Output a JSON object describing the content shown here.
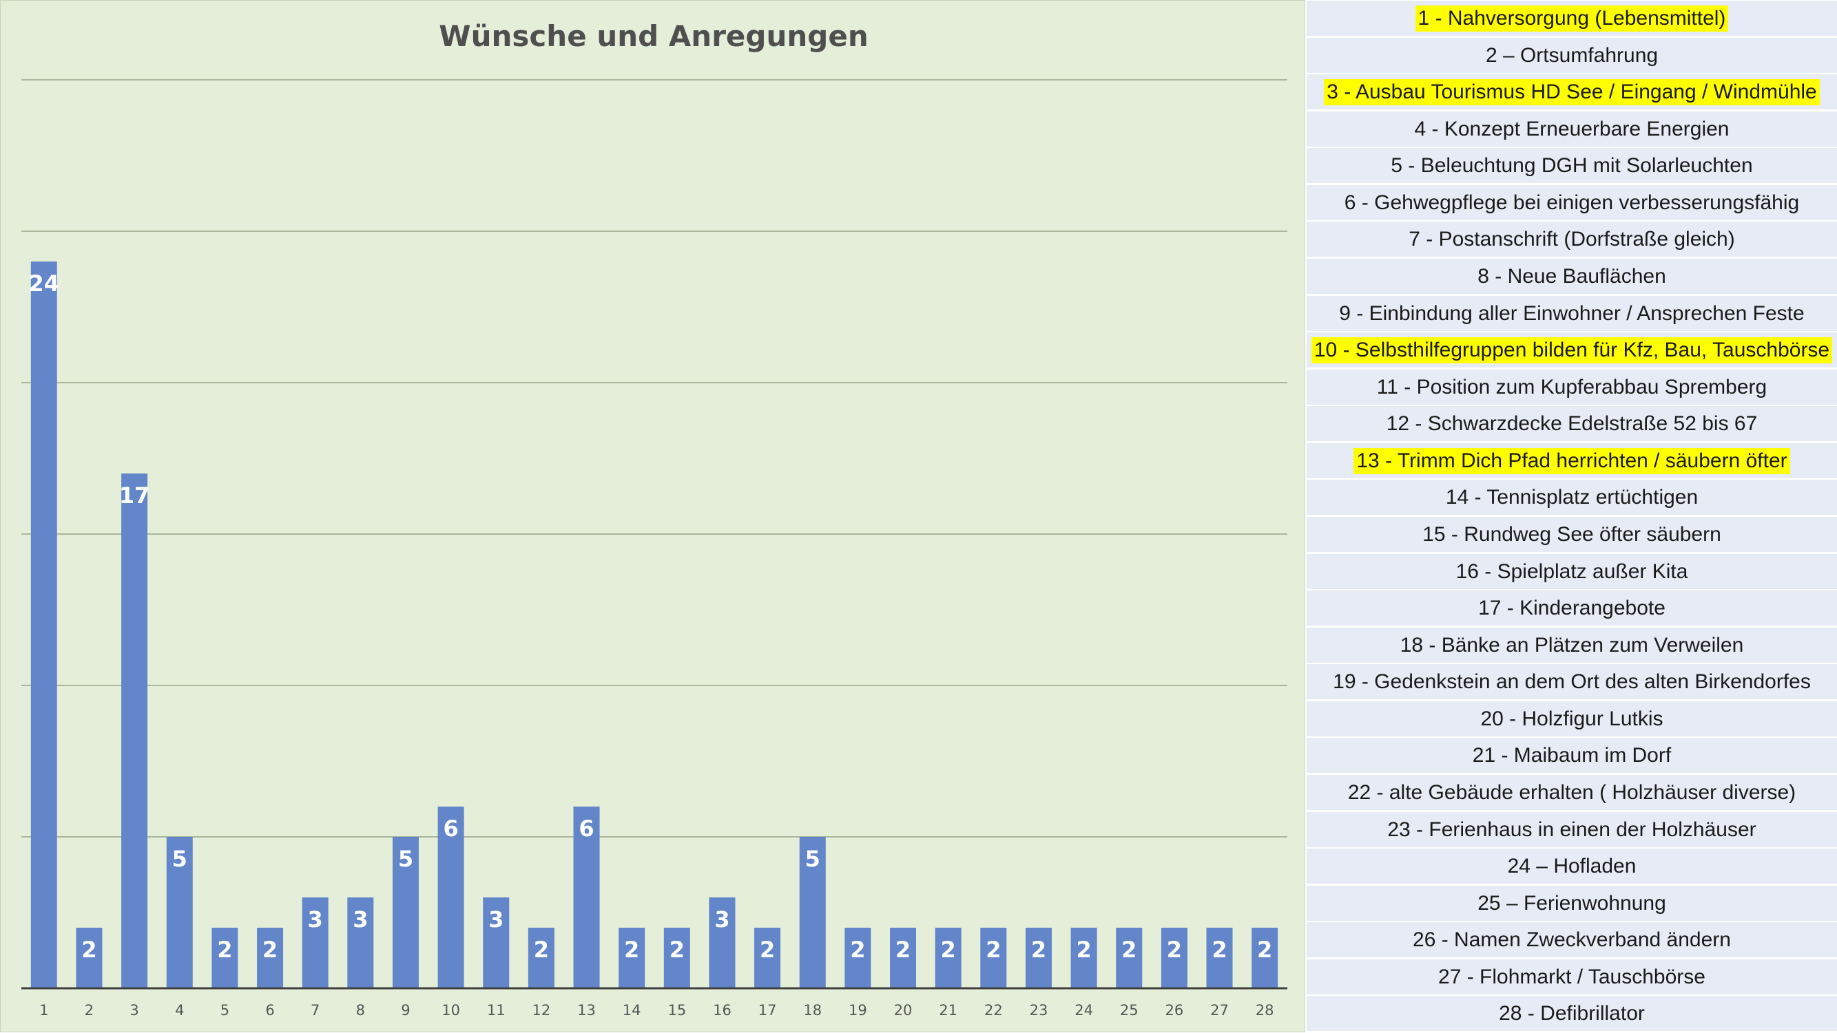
{
  "chart_data": {
    "type": "bar",
    "title": "Wünsche und Anregungen",
    "xlabel": "",
    "ylabel": "",
    "categories": [
      "1",
      "2",
      "3",
      "4",
      "5",
      "6",
      "7",
      "8",
      "9",
      "10",
      "11",
      "12",
      "13",
      "14",
      "15",
      "16",
      "17",
      "18",
      "19",
      "20",
      "21",
      "22",
      "23",
      "24",
      "25",
      "26",
      "27",
      "28"
    ],
    "values": [
      24,
      2,
      17,
      5,
      2,
      2,
      3,
      3,
      5,
      6,
      3,
      2,
      6,
      2,
      2,
      3,
      2,
      5,
      2,
      2,
      2,
      2,
      2,
      2,
      2,
      2,
      2,
      2
    ],
    "ylim": [
      0,
      30
    ],
    "gridlines": [
      0,
      5,
      10,
      15,
      20,
      25,
      30
    ],
    "grid": true,
    "legend": "none",
    "colors": {
      "bar": "#6286c9",
      "label": "#ffffff",
      "grid": "#aab79c",
      "axis": "#404040",
      "title": "#4f4f4f"
    }
  },
  "legend_list": {
    "items": [
      {
        "text": "1 - Nahversorgung (Lebensmittel)",
        "highlight": true
      },
      {
        "text": "2 – Ortsumfahrung",
        "highlight": false
      },
      {
        "text": "3 - Ausbau Tourismus HD See / Eingang / Windmühle",
        "highlight": true
      },
      {
        "text": "4 - Konzept Erneuerbare Energien",
        "highlight": false
      },
      {
        "text": "5 - Beleuchtung DGH mit Solarleuchten",
        "highlight": false
      },
      {
        "text": "6 - Gehwegpflege bei einigen verbesserungsfähig",
        "highlight": false
      },
      {
        "text": "7 - Postanschrift (Dorfstraße gleich)",
        "highlight": false
      },
      {
        "text": "8 - Neue Bauflächen",
        "highlight": false
      },
      {
        "text": "9 - Einbindung aller Einwohner / Ansprechen Feste",
        "highlight": false
      },
      {
        "text": "10 - Selbsthilfegruppen bilden für Kfz, Bau, Tauschbörse",
        "highlight": true
      },
      {
        "text": "11 - Position zum Kupferabbau Spremberg",
        "highlight": false
      },
      {
        "text": "12 - Schwarzdecke Edelstraße 52 bis 67",
        "highlight": false
      },
      {
        "text": "13 - Trimm Dich Pfad herrichten / säubern öfter",
        "highlight": true
      },
      {
        "text": "14 - Tennisplatz ertüchtigen",
        "highlight": false
      },
      {
        "text": "15 - Rundweg See öfter säubern",
        "highlight": false
      },
      {
        "text": "16 - Spielplatz außer Kita",
        "highlight": false
      },
      {
        "text": "17 - Kinderangebote",
        "highlight": false
      },
      {
        "text": "18 - Bänke an Plätzen zum Verweilen",
        "highlight": false
      },
      {
        "text": "19 - Gedenkstein an dem Ort des alten Birkendorfes",
        "highlight": false
      },
      {
        "text": "20 - Holzfigur Lutkis",
        "highlight": false
      },
      {
        "text": "21 - Maibaum im Dorf",
        "highlight": false
      },
      {
        "text": "22 - alte Gebäude erhalten ( Holzhäuser diverse)",
        "highlight": false
      },
      {
        "text": "23 - Ferienhaus in einen der Holzhäuser",
        "highlight": false
      },
      {
        "text": "24 – Hofladen",
        "highlight": false
      },
      {
        "text": "25 – Ferienwohnung",
        "highlight": false
      },
      {
        "text": "26 - Namen Zweckverband ändern",
        "highlight": false
      },
      {
        "text": "27 - Flohmarkt / Tauschbörse",
        "highlight": false
      },
      {
        "text": "28 - Defibrillator",
        "highlight": false
      }
    ]
  }
}
